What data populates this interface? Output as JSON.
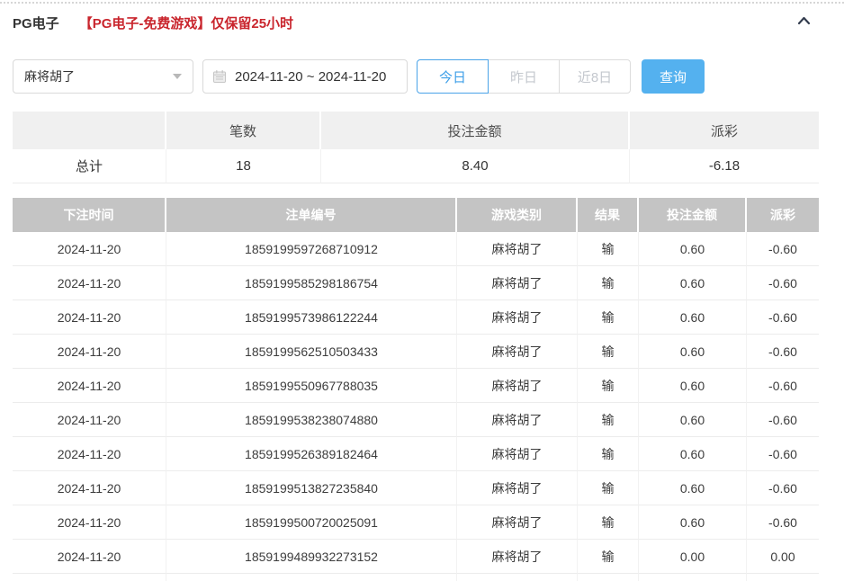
{
  "panel": {
    "title": "PG电子",
    "notice": "【PG电子-免费游戏】仅保留25小时"
  },
  "filters": {
    "game_select": "麻将胡了",
    "date_range": "2024-11-20 ~ 2024-11-20",
    "quick_ranges": [
      {
        "label": "今日",
        "active": true
      },
      {
        "label": "昨日",
        "active": false
      },
      {
        "label": "近8日",
        "active": false
      }
    ],
    "query_button": "查询"
  },
  "summary": {
    "headers": [
      "",
      "笔数",
      "投注金额",
      "派彩"
    ],
    "total_label": "总计",
    "count": "18",
    "bet_amount": "8.40",
    "payout": "-6.18"
  },
  "table": {
    "headers": [
      "下注时间",
      "注单编号",
      "游戏类别",
      "结果",
      "投注金额",
      "派彩"
    ],
    "rows": [
      [
        "2024-11-20",
        "1859199597268710912",
        "麻将胡了",
        "输",
        "0.60",
        "-0.60"
      ],
      [
        "2024-11-20",
        "1859199585298186754",
        "麻将胡了",
        "输",
        "0.60",
        "-0.60"
      ],
      [
        "2024-11-20",
        "1859199573986122244",
        "麻将胡了",
        "输",
        "0.60",
        "-0.60"
      ],
      [
        "2024-11-20",
        "1859199562510503433",
        "麻将胡了",
        "输",
        "0.60",
        "-0.60"
      ],
      [
        "2024-11-20",
        "1859199550967788035",
        "麻将胡了",
        "输",
        "0.60",
        "-0.60"
      ],
      [
        "2024-11-20",
        "1859199538238074880",
        "麻将胡了",
        "输",
        "0.60",
        "-0.60"
      ],
      [
        "2024-11-20",
        "1859199526389182464",
        "麻将胡了",
        "输",
        "0.60",
        "-0.60"
      ],
      [
        "2024-11-20",
        "1859199513827235840",
        "麻将胡了",
        "输",
        "0.60",
        "-0.60"
      ],
      [
        "2024-11-20",
        "1859199500720025091",
        "麻将胡了",
        "输",
        "0.60",
        "-0.60"
      ],
      [
        "2024-11-20",
        "1859199489932273152",
        "麻将胡了",
        "输",
        "0.00",
        "0.00"
      ]
    ]
  },
  "icons": {
    "collapse": "chevron-up-icon",
    "calendar": "calendar-icon",
    "select_caret": "caret-down-icon"
  },
  "colors": {
    "accent_blue": "#54b1ef",
    "active_blue": "#3d9fe8",
    "danger_red": "#f05568",
    "notice_red": "#c9252d",
    "table_header_bg": "#c4c4c4",
    "summary_header_bg": "#f0f0f0"
  }
}
